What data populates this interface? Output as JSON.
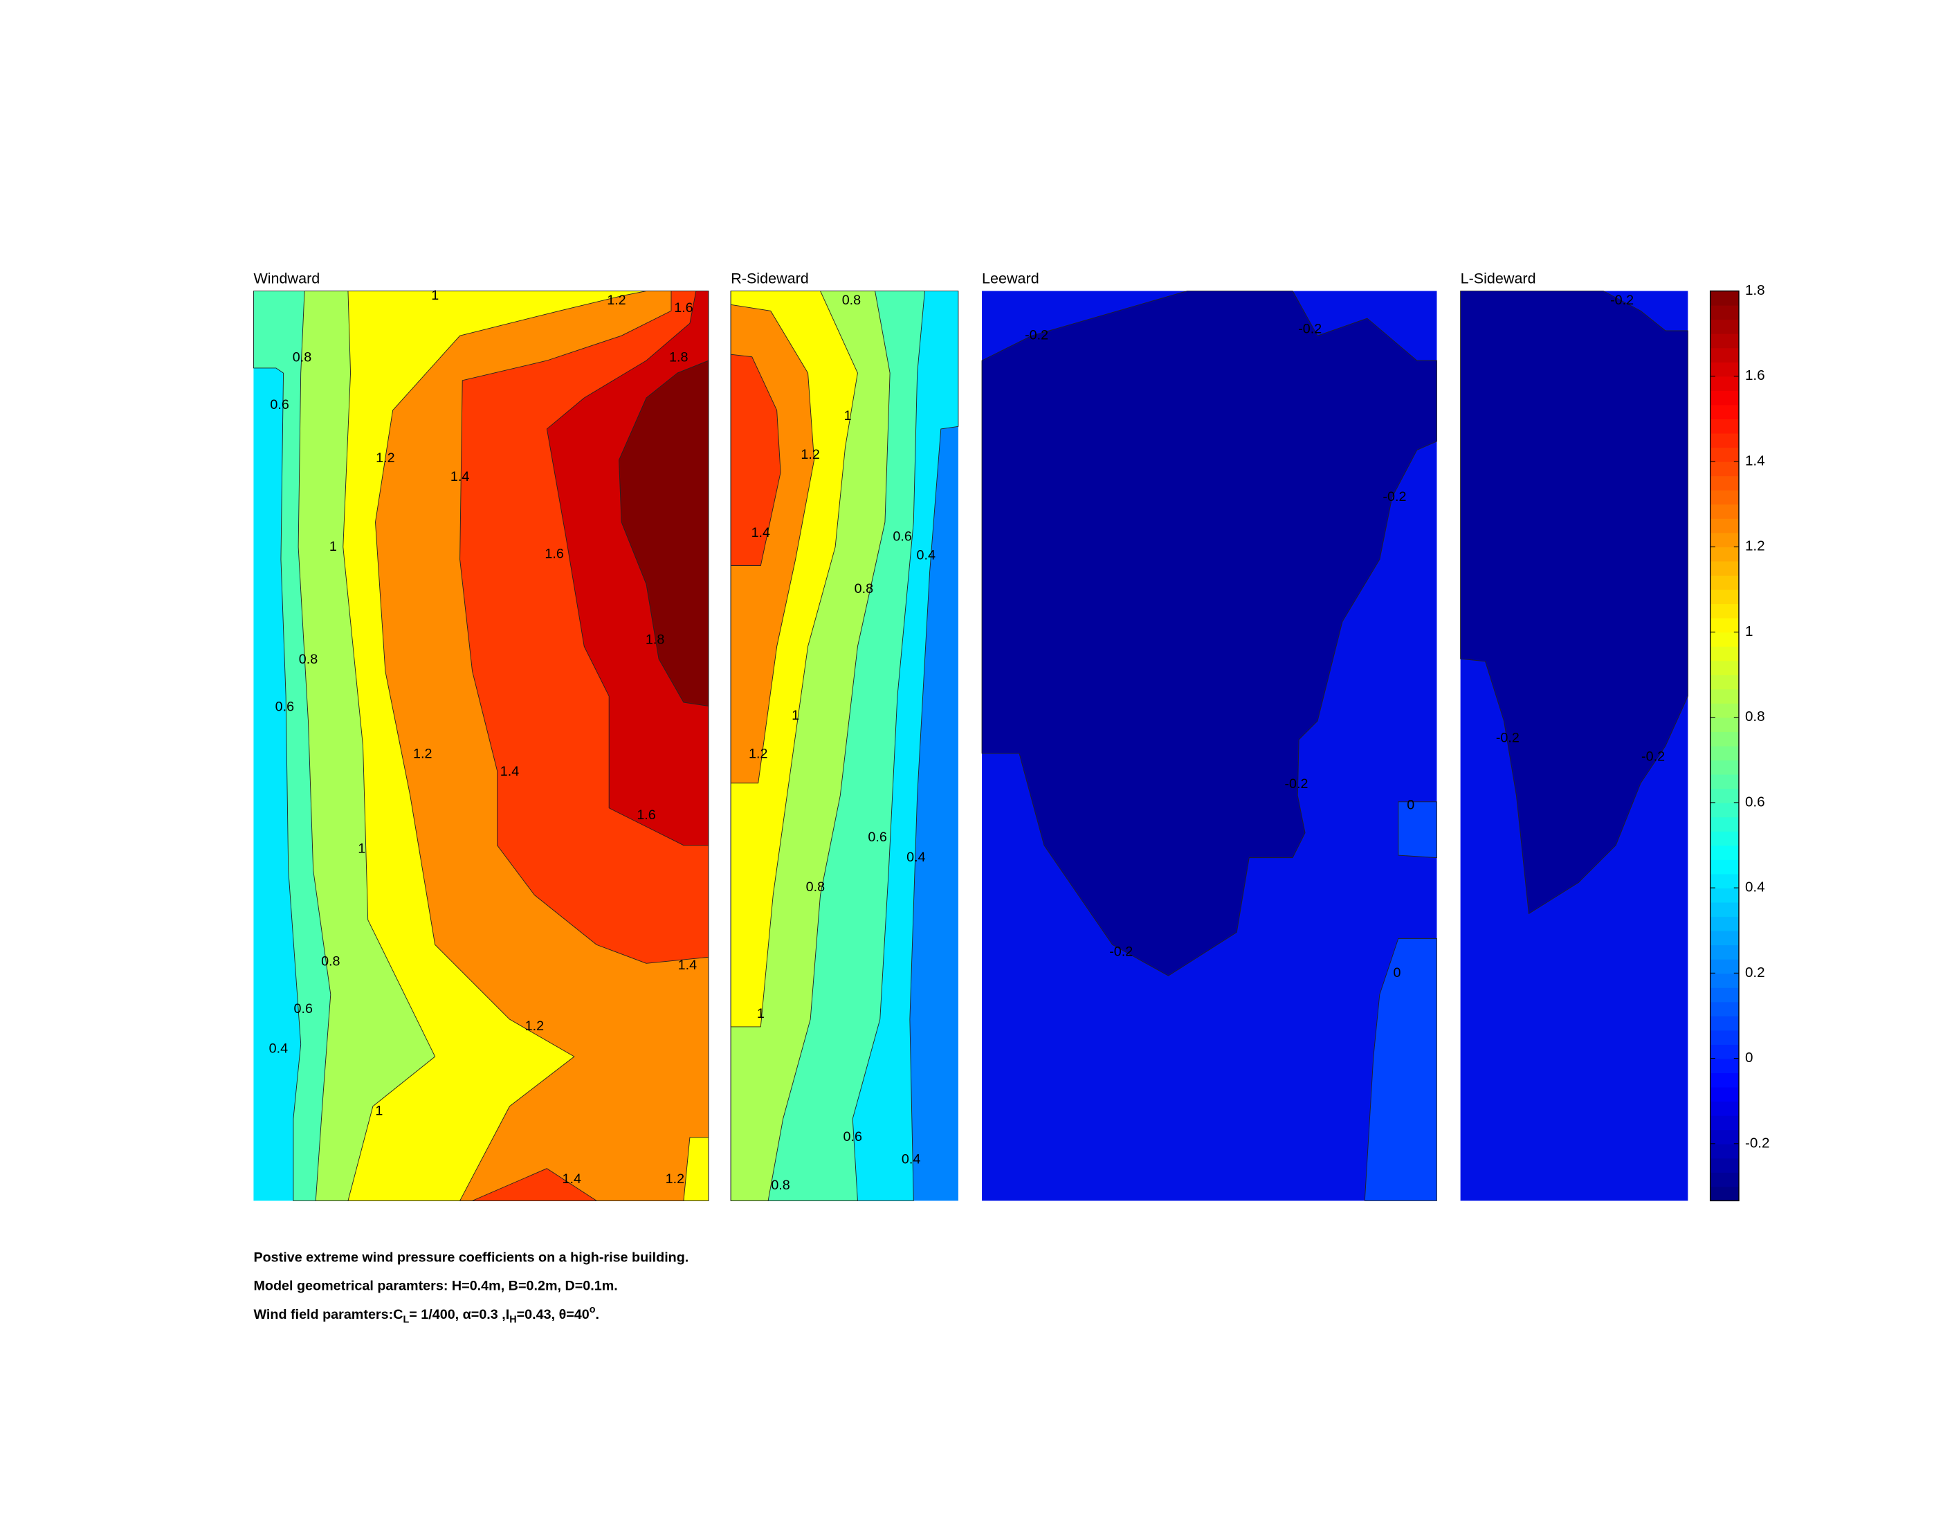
{
  "chart_data": [
    {
      "type": "contour",
      "title": "Windward",
      "regions": [
        {
          "level": 0.4,
          "color": "#00e8ff"
        },
        {
          "level": 0.6,
          "color": "#4dffb2"
        },
        {
          "level": 0.8,
          "color": "#aaff55"
        },
        {
          "level": 1,
          "color": "#ffff00"
        },
        {
          "level": 1.2,
          "color": "#ff8c00"
        },
        {
          "level": 1.4,
          "color": "#ff3a00"
        },
        {
          "level": 1.6,
          "color": "#d20000"
        },
        {
          "level": 1.8,
          "color": "#800000"
        }
      ],
      "contour_labels": [
        1,
        1.2,
        1.6,
        0.8,
        1.8,
        0.6,
        1.2,
        1.4,
        1,
        1.6,
        1.8,
        0.8,
        0.6,
        1.2,
        1.4,
        1.6,
        1,
        0.8,
        1.4,
        0.6,
        1.2,
        0.4,
        1,
        1.4,
        1.2
      ]
    },
    {
      "type": "contour",
      "title": "R-Sideward",
      "regions": [
        {
          "level": 0.2,
          "color": "#0084ff"
        },
        {
          "level": 0.4,
          "color": "#00e8ff"
        },
        {
          "level": 0.6,
          "color": "#4dffb2"
        },
        {
          "level": 0.8,
          "color": "#aaff55"
        },
        {
          "level": 1,
          "color": "#ffff00"
        },
        {
          "level": 1.2,
          "color": "#ff8c00"
        },
        {
          "level": 1.4,
          "color": "#ff3a00"
        }
      ],
      "contour_labels": [
        0.8,
        1,
        1.2,
        1.4,
        0.6,
        0.4,
        0.8,
        1,
        1.2,
        0.6,
        0.4,
        0.8,
        1,
        0.6,
        0.4,
        0.8
      ]
    },
    {
      "type": "contour",
      "title": "Leeward",
      "regions": [
        {
          "level": -0.2,
          "color": "#0010e6"
        },
        {
          "level": -0.2,
          "color": "#00009c"
        },
        {
          "level": 0,
          "color": "#0044ff"
        }
      ],
      "contour_labels": [
        -0.2,
        -0.2,
        -0.2,
        -0.2,
        0,
        -0.2,
        0
      ]
    },
    {
      "type": "contour",
      "title": "L-Sideward",
      "regions": [
        {
          "level": -0.2,
          "color": "#0010e6"
        },
        {
          "level": -0.2,
          "color": "#00009c"
        }
      ],
      "contour_labels": [
        -0.2,
        -0.2,
        -0.2
      ]
    }
  ],
  "colorbar": {
    "clim": [
      -0.334,
      1.8
    ],
    "ticks": [
      -0.2,
      0,
      0.2,
      0.4,
      0.6,
      0.8,
      1,
      1.2,
      1.4,
      1.6,
      1.8
    ],
    "colormap": "jet"
  },
  "caption": {
    "line1": "Postive extreme  wind pressure coefficients on a high-rise building.",
    "line2": "Model geometrical paramters: H=0.4m, B=0.2m, D=0.1m.",
    "line3": {
      "text1": "Wind field paramters:C",
      "sub1": "L",
      "text2": "= 1/400, α=0.3 ,I",
      "sub2": "H",
      "text3": "=0.43, θ=40",
      "sup": "o",
      "text4": "."
    }
  }
}
